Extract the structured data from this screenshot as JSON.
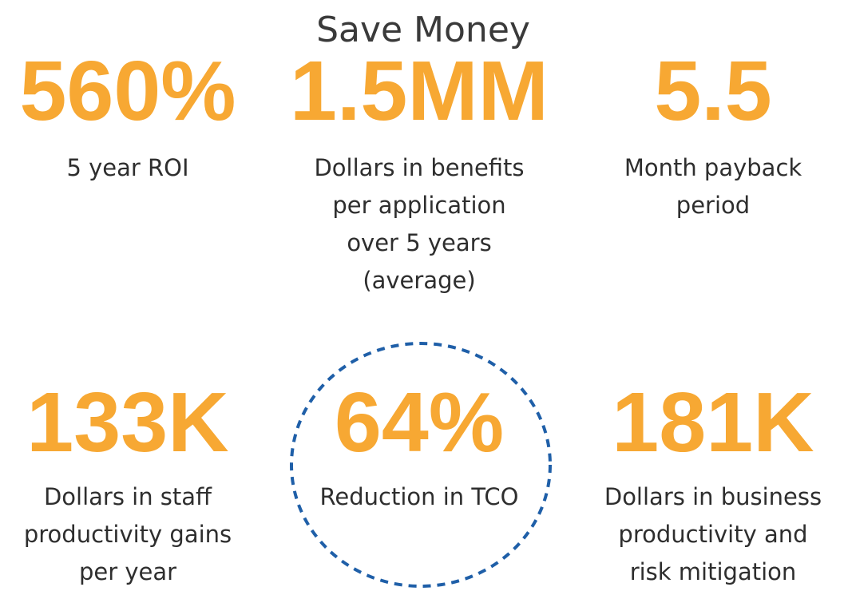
{
  "title": "Save Money",
  "stats": [
    {
      "value": "560%",
      "label": [
        "5 year ROI"
      ]
    },
    {
      "value": "1.5MM",
      "label": [
        "Dollars in benefits",
        "per application",
        "over 5 years",
        "(average)"
      ]
    },
    {
      "value": "5.5",
      "label": [
        "Month payback",
        "period"
      ]
    },
    {
      "value": "133K",
      "label": [
        "Dollars in staff",
        "productivity gains",
        "per year"
      ]
    },
    {
      "value": "64%",
      "label": [
        "Reduction in TCO"
      ]
    },
    {
      "value": "181K",
      "label": [
        "Dollars in business",
        "productivity and",
        "risk mitigation"
      ]
    }
  ]
}
